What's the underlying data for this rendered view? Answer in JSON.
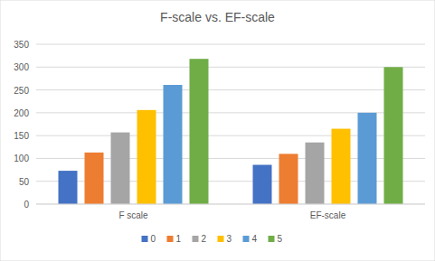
{
  "chart_data": {
    "type": "bar",
    "title": "F-scale vs. EF-scale",
    "categories": [
      "F scale",
      "EF-scale"
    ],
    "series": [
      {
        "name": "0",
        "color": "#4472c4",
        "values": [
          73,
          86
        ]
      },
      {
        "name": "1",
        "color": "#ed7d31",
        "values": [
          113,
          110
        ]
      },
      {
        "name": "2",
        "color": "#a5a5a5",
        "values": [
          157,
          135
        ]
      },
      {
        "name": "3",
        "color": "#ffc000",
        "values": [
          206,
          165
        ]
      },
      {
        "name": "4",
        "color": "#5b9bd5",
        "values": [
          261,
          200
        ]
      },
      {
        "name": "5",
        "color": "#70ad47",
        "values": [
          318,
          300
        ]
      }
    ],
    "ylim": [
      0,
      350
    ],
    "yticks": [
      0,
      50,
      100,
      150,
      200,
      250,
      300,
      350
    ],
    "grid": true,
    "legend": "bottom"
  }
}
